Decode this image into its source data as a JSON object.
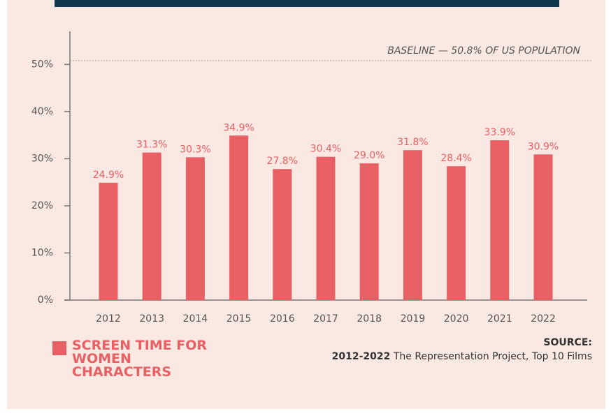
{
  "chart_data": {
    "type": "bar",
    "categories": [
      "2012",
      "2013",
      "2014",
      "2015",
      "2016",
      "2017",
      "2018",
      "2019",
      "2020",
      "2021",
      "2022"
    ],
    "series": [
      {
        "name": "SCREEN TIME FOR WOMEN CHARACTERS",
        "color": "#e86063",
        "values": [
          24.9,
          31.3,
          30.3,
          34.9,
          27.8,
          30.4,
          29.0,
          31.8,
          28.4,
          33.9,
          30.9
        ],
        "value_labels": [
          "24.9%",
          "31.3%",
          "30.3%",
          "34.9%",
          "27.8%",
          "30.4%",
          "29.0%",
          "31.8%",
          "28.4%",
          "33.9%",
          "30.9%"
        ]
      }
    ],
    "ylim": [
      0,
      57
    ],
    "yticks": [
      {
        "value": 0,
        "label": "0%"
      },
      {
        "value": 10,
        "label": "10%"
      },
      {
        "value": 20,
        "label": "20%"
      },
      {
        "value": 30,
        "label": "30%"
      },
      {
        "value": 40,
        "label": "40%"
      },
      {
        "value": 50,
        "label": "50%"
      }
    ],
    "baseline": {
      "value": 50.8,
      "label": "BASELINE — 50.8% OF US POPULATION"
    },
    "source": {
      "title": "SOURCE:",
      "years": "2012-2022",
      "text": "The Representation Project, Top 10 Films"
    }
  }
}
